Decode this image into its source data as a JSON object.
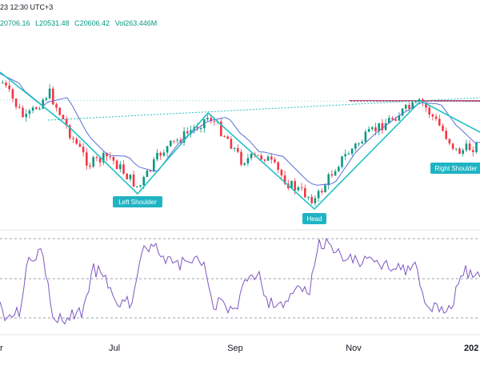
{
  "header": {
    "datetime_fragment": "23 12:30 UTC+3",
    "ohlc": {
      "high": "20706.16",
      "low": "L20531.48",
      "close": "C20606.42",
      "volume": "Vol263.446M"
    }
  },
  "annotations": {
    "left_shoulder": "Left Shoulder",
    "head": "Head",
    "right_shoulder": "Right Shoulder"
  },
  "axis": {
    "months": [
      "Jul",
      "Sep",
      "Nov",
      "202"
    ],
    "left_partial": "r"
  },
  "colors": {
    "up": "#089981",
    "down": "#f23645",
    "pattern": "#22c1c3",
    "ma": "#5b6fd6",
    "oscillator": "#7e57c2",
    "neckline": "#22c1c3",
    "resistance": "#a0174f",
    "grid": "#e0e3eb",
    "label_bg": "#1fb4c4"
  },
  "chart_data": {
    "type": "line",
    "title": "",
    "series": [],
    "x": [
      "Jul",
      "Sep",
      "Nov",
      "202"
    ],
    "pattern": "Head and Shoulders",
    "shoulders": [
      "Left Shoulder",
      "Head",
      "Right Shoulder"
    ]
  }
}
